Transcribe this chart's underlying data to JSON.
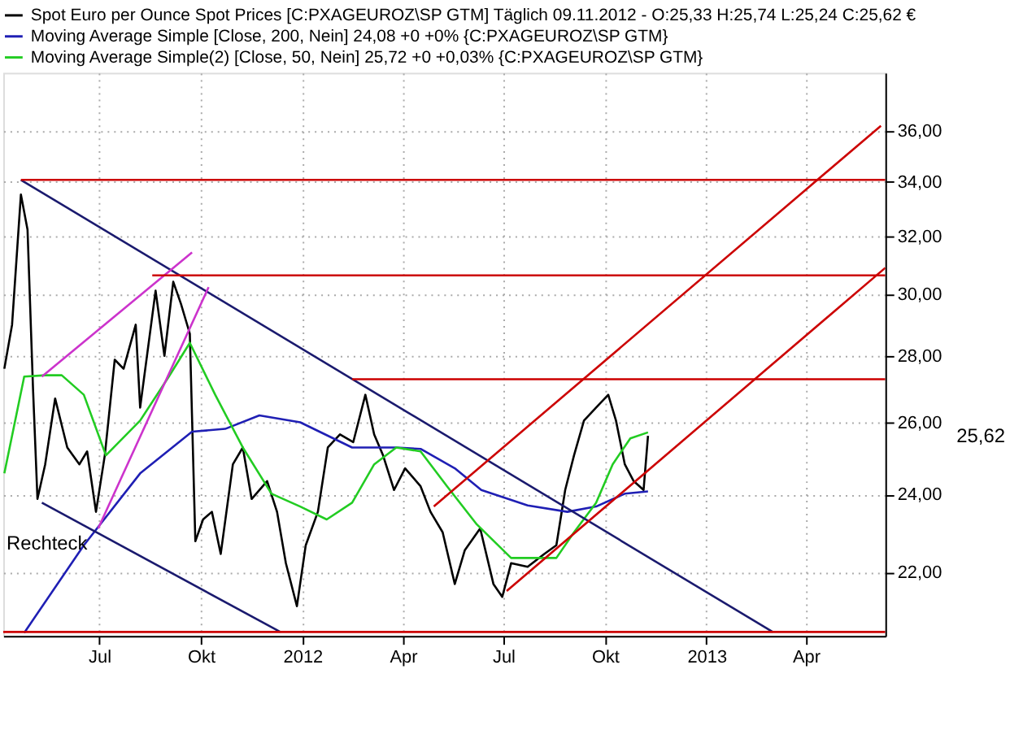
{
  "chart_data": {
    "type": "line",
    "log": true,
    "xlim": [
      "2011-04-05",
      "2013-06-12"
    ],
    "ylim": [
      20.5,
      38.4
    ],
    "xticks": [
      {
        "value": "2011-07-01",
        "label": "Jul"
      },
      {
        "value": "2011-10-01",
        "label": "Okt"
      },
      {
        "value": "2012-01-01",
        "label": "2012"
      },
      {
        "value": "2012-04-01",
        "label": "Apr"
      },
      {
        "value": "2012-07-01",
        "label": "Jul"
      },
      {
        "value": "2012-10-01",
        "label": "Okt"
      },
      {
        "value": "2013-01-01",
        "label": "2013"
      },
      {
        "value": "2013-04-01",
        "label": "Apr"
      }
    ],
    "yticks": [
      {
        "value": 22,
        "label": "22,00"
      },
      {
        "value": 24,
        "label": "24,00"
      },
      {
        "value": 26,
        "label": "26,00"
      },
      {
        "value": 28,
        "label": "28,00"
      },
      {
        "value": 30,
        "label": "30,00"
      },
      {
        "value": 32,
        "label": "32,00"
      },
      {
        "value": 34,
        "label": "34,00"
      },
      {
        "value": 36,
        "label": "36,00"
      }
    ],
    "grid": true,
    "legend": "top",
    "annotations": [
      "Rechteck",
      "25,62"
    ],
    "series": [
      {
        "name": "Spot Euro per Ounce Spot Prices [C:PXAGEUROZ\\SP GTM]  Täglich 09.11.2012 - O:25,33 H:25,74 L:25,24 C:25,62 €",
        "color": "#000000",
        "x": [
          "2011-04-06",
          "2011-04-13",
          "2011-04-21",
          "2011-04-27",
          "2011-05-02",
          "2011-05-06",
          "2011-05-13",
          "2011-05-22",
          "2011-06-02",
          "2011-06-13",
          "2011-06-20",
          "2011-06-28",
          "2011-07-06",
          "2011-07-15",
          "2011-07-23",
          "2011-08-03",
          "2011-08-07",
          "2011-08-21",
          "2011-08-29",
          "2011-09-06",
          "2011-09-13",
          "2011-09-21",
          "2011-09-26",
          "2011-10-03",
          "2011-10-11",
          "2011-10-19",
          "2011-10-30",
          "2011-11-08",
          "2011-11-16",
          "2011-11-30",
          "2011-12-09",
          "2011-12-17",
          "2011-12-27",
          "2012-01-04",
          "2012-01-15",
          "2012-01-24",
          "2012-02-04",
          "2012-02-16",
          "2012-02-27",
          "2012-03-06",
          "2012-03-14",
          "2012-03-24",
          "2012-04-03",
          "2012-04-17",
          "2012-04-26",
          "2012-05-07",
          "2012-05-18",
          "2012-05-27",
          "2012-06-10",
          "2012-06-22",
          "2012-06-30",
          "2012-07-08",
          "2012-07-23",
          "2012-08-07",
          "2012-08-18",
          "2012-08-26",
          "2012-09-03",
          "2012-09-12",
          "2012-09-23",
          "2012-10-04",
          "2012-10-11",
          "2012-10-19",
          "2012-10-27",
          "2012-11-05",
          "2012-11-09"
        ],
        "values": [
          27.61,
          29.0,
          33.53,
          32.24,
          26.98,
          23.88,
          24.82,
          26.71,
          25.29,
          24.82,
          25.18,
          23.54,
          25.07,
          27.89,
          27.61,
          29.0,
          26.44,
          30.12,
          28.01,
          30.42,
          29.68,
          28.71,
          22.78,
          23.34,
          23.54,
          22.46,
          24.82,
          25.29,
          23.88,
          24.36,
          23.54,
          22.23,
          21.19,
          22.68,
          23.54,
          25.29,
          25.66,
          25.44,
          26.82,
          25.66,
          25.07,
          24.12,
          24.71,
          24.22,
          23.54,
          23.01,
          21.72,
          22.55,
          23.11,
          21.72,
          21.41,
          22.23,
          22.14,
          22.46,
          22.68,
          24.12,
          25.07,
          26.06,
          26.44,
          26.82,
          26.06,
          24.82,
          24.36,
          24.12,
          25.62
        ]
      },
      {
        "name": "Moving Average Simple [Close, 200, Nein] 24,08 +0 +0% {C:PXAGEUROZ\\SP GTM}",
        "color": "#1f1fb4",
        "x": [
          "2011-04-24",
          "2011-06-17",
          "2011-08-07",
          "2011-09-23",
          "2011-10-23",
          "2011-11-23",
          "2011-12-30",
          "2012-02-15",
          "2012-03-26",
          "2012-04-17",
          "2012-05-18",
          "2012-06-11",
          "2012-07-23",
          "2012-08-28",
          "2012-09-23",
          "2012-10-19",
          "2012-11-09"
        ],
        "values": [
          20.57,
          22.68,
          24.57,
          25.74,
          25.82,
          26.21,
          26.01,
          25.29,
          25.29,
          25.25,
          24.71,
          24.12,
          23.71,
          23.54,
          23.68,
          24.02,
          24.08
        ]
      },
      {
        "name": "Moving Average Simple(2) [Close, 50, Nein] 25,72 +0 +0,03% {C:PXAGEUROZ\\SP GTM}",
        "color": "#22cc22",
        "x": [
          "2011-04-06",
          "2011-04-24",
          "2011-05-13",
          "2011-05-28",
          "2011-06-17",
          "2011-07-07",
          "2011-08-07",
          "2011-09-02",
          "2011-09-21",
          "2011-10-14",
          "2011-11-08",
          "2011-12-04",
          "2011-12-30",
          "2012-01-23",
          "2012-02-15",
          "2012-03-06",
          "2012-03-26",
          "2012-04-17",
          "2012-05-11",
          "2012-06-07",
          "2012-07-08",
          "2012-08-18",
          "2012-09-03",
          "2012-09-23",
          "2012-10-08",
          "2012-10-24",
          "2012-11-09"
        ],
        "values": [
          24.57,
          27.37,
          27.41,
          27.41,
          26.82,
          25.07,
          26.06,
          27.37,
          28.42,
          26.82,
          25.29,
          24.02,
          23.68,
          23.34,
          23.78,
          24.82,
          25.29,
          25.18,
          24.22,
          23.21,
          22.36,
          22.36,
          23.01,
          23.78,
          24.82,
          25.55,
          25.72
        ]
      },
      {
        "color": "#1a1a6e",
        "x": [
          "2011-04-21",
          "2013-03-02"
        ],
        "values": [
          34.08,
          20.59
        ]
      },
      {
        "color": "#1a1a6e",
        "x": [
          "2011-05-10",
          "2011-12-12"
        ],
        "values": [
          23.78,
          20.59
        ]
      },
      {
        "color": "#cc33cc",
        "x": [
          "2011-05-10",
          "2011-09-23"
        ],
        "values": [
          27.37,
          31.43
        ]
      },
      {
        "color": "#cc33cc",
        "x": [
          "2011-06-30",
          "2011-10-08"
        ],
        "values": [
          23.11,
          30.24
        ]
      },
      {
        "color": "#cc0000",
        "x": [
          "2012-04-29",
          "2013-06-08"
        ],
        "values": [
          23.68,
          36.2
        ]
      },
      {
        "color": "#cc0000",
        "x": [
          "2012-07-04",
          "2013-06-12"
        ],
        "values": [
          21.55,
          30.9
        ]
      },
      {
        "color": "#cc0000",
        "x": [
          "2011-04-21",
          "2013-06-12"
        ],
        "values": [
          34.08,
          34.08
        ]
      },
      {
        "color": "#cc0000",
        "x": [
          "2011-08-18",
          "2013-06-12"
        ],
        "values": [
          30.64,
          30.64
        ]
      },
      {
        "color": "#cc0000",
        "x": [
          "2012-02-15",
          "2013-06-12"
        ],
        "values": [
          27.29,
          27.29
        ]
      },
      {
        "color": "#cc0000",
        "x": [
          "2011-04-05",
          "2013-06-12"
        ],
        "values": [
          20.59,
          20.59
        ]
      }
    ]
  }
}
